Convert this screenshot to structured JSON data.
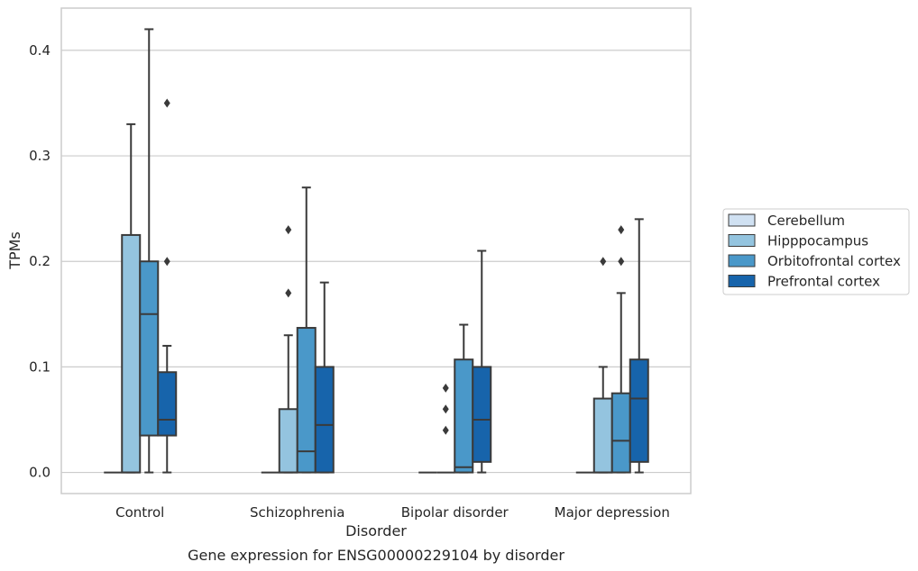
{
  "chart_data": {
    "type": "boxplot",
    "xlabel": "Disorder",
    "ylabel": "TPMs",
    "caption": "Gene expression for ENSG00000229104 by disorder",
    "ylim": [
      -0.02,
      0.44
    ],
    "yticks": [
      0.0,
      0.1,
      0.2,
      0.3,
      0.4
    ],
    "ytick_labels": [
      "0.0",
      "0.1",
      "0.2",
      "0.3",
      "0.4"
    ],
    "grid": "horizontal",
    "legend_position": "right",
    "categories": [
      "Control",
      "Schizophrenia",
      "Bipolar disorder",
      "Major depression"
    ],
    "series": [
      {
        "name": "Cerebellum",
        "color": "#d0e1f2",
        "boxes": [
          {
            "whislo": 0.0,
            "q1": 0.0,
            "med": 0.0,
            "q3": 0.0,
            "whishi": 0.0,
            "fliers": []
          },
          {
            "whislo": 0.0,
            "q1": 0.0,
            "med": 0.0,
            "q3": 0.0,
            "whishi": 0.0,
            "fliers": []
          },
          {
            "whislo": 0.0,
            "q1": 0.0,
            "med": 0.0,
            "q3": 0.0,
            "whishi": 0.0,
            "fliers": []
          },
          {
            "whislo": 0.0,
            "q1": 0.0,
            "med": 0.0,
            "q3": 0.0,
            "whishi": 0.0,
            "fliers": []
          }
        ]
      },
      {
        "name": "Hipppocampus",
        "color": "#94c4df",
        "boxes": [
          {
            "whislo": 0.0,
            "q1": 0.0,
            "med": 0.0,
            "q3": 0.225,
            "whishi": 0.33,
            "fliers": []
          },
          {
            "whislo": 0.0,
            "q1": 0.0,
            "med": 0.0,
            "q3": 0.06,
            "whishi": 0.13,
            "fliers": [
              0.17,
              0.23
            ]
          },
          {
            "whislo": 0.0,
            "q1": 0.0,
            "med": 0.0,
            "q3": 0.0,
            "whishi": 0.0,
            "fliers": [
              0.04,
              0.06,
              0.08
            ]
          },
          {
            "whislo": 0.0,
            "q1": 0.0,
            "med": 0.0,
            "q3": 0.07,
            "whishi": 0.1,
            "fliers": [
              0.2
            ]
          }
        ]
      },
      {
        "name": "Orbitofrontal cortex",
        "color": "#4a98c9",
        "boxes": [
          {
            "whislo": 0.0,
            "q1": 0.035,
            "med": 0.15,
            "q3": 0.2,
            "whishi": 0.42,
            "fliers": []
          },
          {
            "whislo": 0.0,
            "q1": 0.0,
            "med": 0.02,
            "q3": 0.137,
            "whishi": 0.27,
            "fliers": []
          },
          {
            "whislo": 0.0,
            "q1": 0.0,
            "med": 0.005,
            "q3": 0.107,
            "whishi": 0.14,
            "fliers": []
          },
          {
            "whislo": 0.0,
            "q1": 0.0,
            "med": 0.03,
            "q3": 0.075,
            "whishi": 0.17,
            "fliers": [
              0.2,
              0.23
            ]
          }
        ]
      },
      {
        "name": "Prefrontal cortex",
        "color": "#1764ab",
        "boxes": [
          {
            "whislo": 0.0,
            "q1": 0.035,
            "med": 0.05,
            "q3": 0.095,
            "whishi": 0.12,
            "fliers": [
              0.2,
              0.35
            ]
          },
          {
            "whislo": 0.0,
            "q1": 0.0,
            "med": 0.045,
            "q3": 0.1,
            "whishi": 0.18,
            "fliers": []
          },
          {
            "whislo": 0.0,
            "q1": 0.01,
            "med": 0.05,
            "q3": 0.1,
            "whishi": 0.21,
            "fliers": []
          },
          {
            "whislo": 0.0,
            "q1": 0.01,
            "med": 0.07,
            "q3": 0.107,
            "whishi": 0.24,
            "fliers": []
          }
        ]
      }
    ]
  }
}
